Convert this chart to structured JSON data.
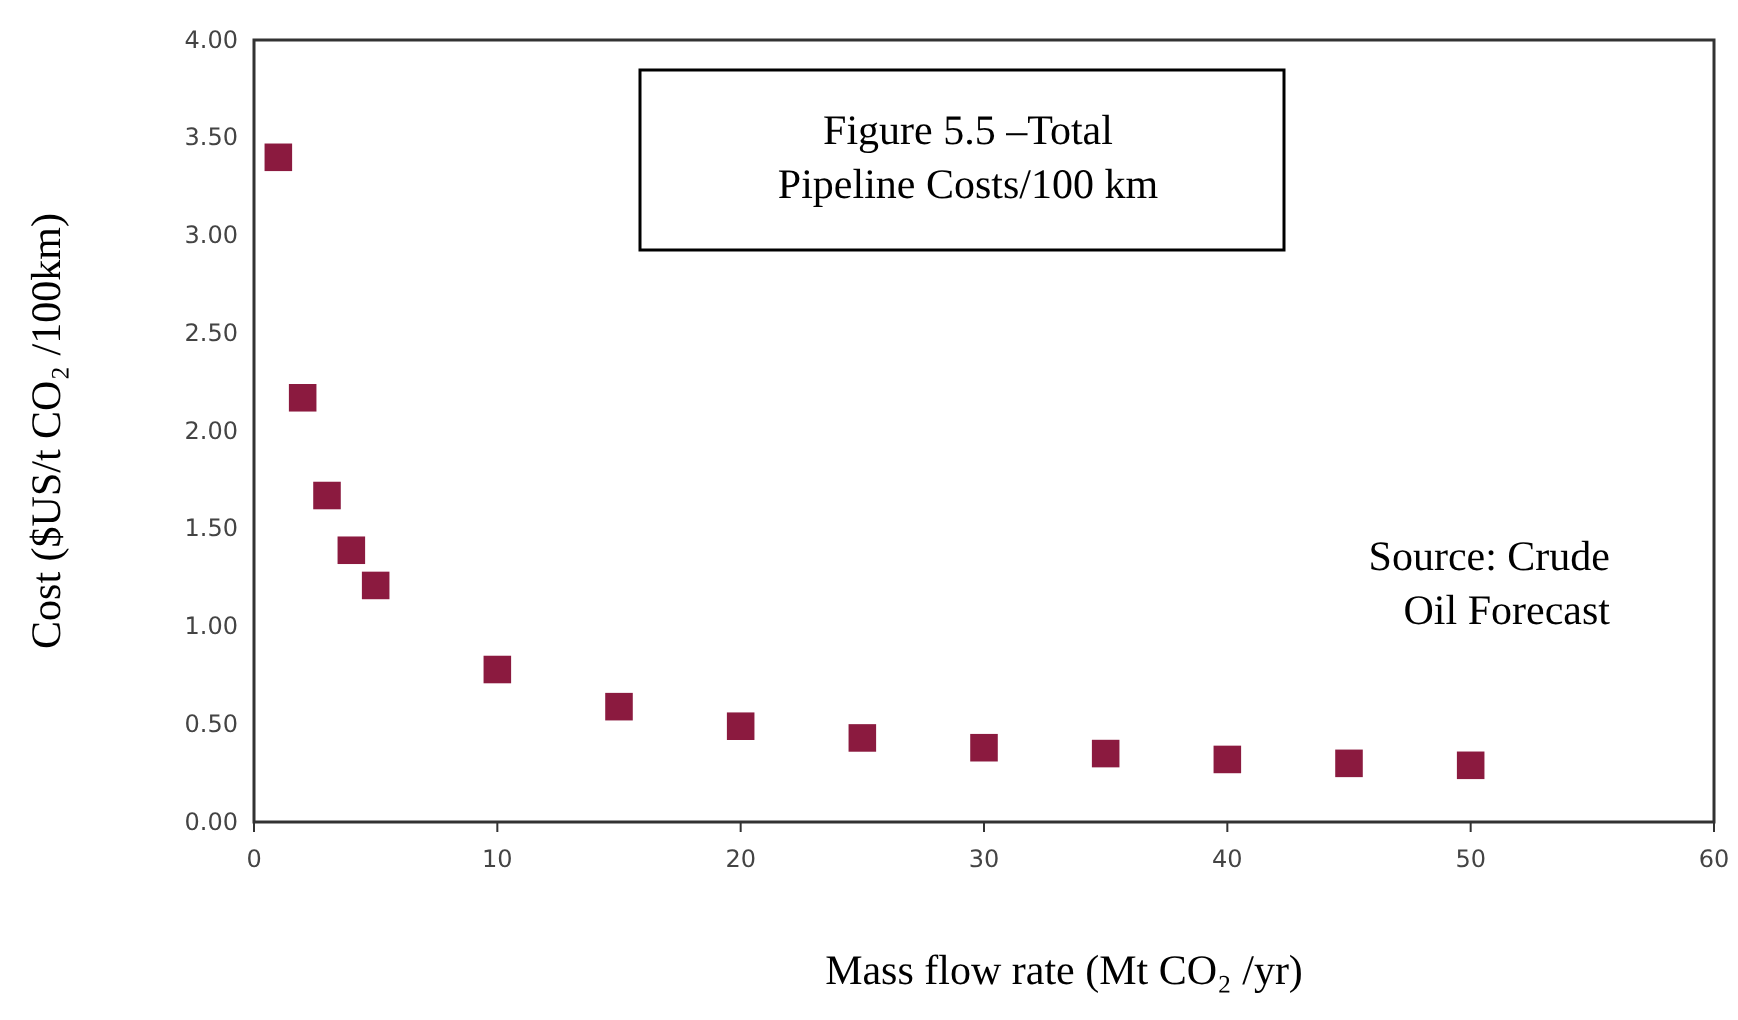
{
  "chart_data": {
    "type": "scatter",
    "title": "Figure 5.5 –Total Pipeline Costs/100 km",
    "xlabel": "Mass flow rate (Mt CO₂ /yr)",
    "ylabel": "Cost ($US/t CO₂ /100km)",
    "annotations": [
      "Source: Crude Oil Forecast"
    ],
    "x": [
      1,
      2,
      3,
      4,
      5,
      10,
      15,
      20,
      25,
      30,
      35,
      40,
      45,
      50
    ],
    "series": [
      {
        "color": "#8b1a3f",
        "values": [
          3.4,
          2.17,
          1.67,
          1.39,
          1.21,
          0.78,
          0.59,
          0.49,
          0.43,
          0.38,
          0.35,
          0.32,
          0.3,
          0.29
        ]
      }
    ],
    "xlim": [
      0,
      60
    ],
    "xticks": [
      0,
      10,
      20,
      30,
      40,
      50,
      60
    ],
    "ylim": [
      0,
      4
    ],
    "yticks": [
      {
        "value": 0,
        "label": "0.00"
      },
      {
        "value": 0.5,
        "label": "0.50"
      },
      {
        "value": 1,
        "label": "1.00"
      },
      {
        "value": 1.5,
        "label": "1.50"
      },
      {
        "value": 2,
        "label": "2.00"
      },
      {
        "value": 2.5,
        "label": "2.50"
      },
      {
        "value": 3,
        "label": "3.00"
      },
      {
        "value": 3.5,
        "label": "3.50"
      },
      {
        "value": 4,
        "label": "4.00"
      }
    ],
    "grid": false,
    "marker": "square"
  }
}
